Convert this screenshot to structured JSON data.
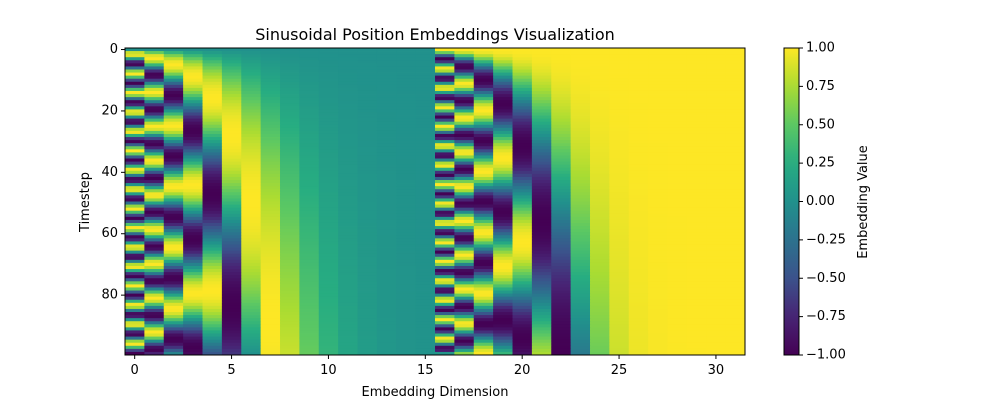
{
  "chart_data": {
    "type": "heatmap",
    "title": "Sinusoidal Position Embeddings Visualization",
    "xlabel": "Embedding Dimension",
    "ylabel": "Timestep",
    "colorbar_label": "Embedding Value",
    "colormap": "viridis",
    "rows": 100,
    "columns": 32,
    "embedding_dim": 32,
    "half_dim": 16,
    "max_period": 10000,
    "layout": "sin for dimensions 0-15, cos for dimensions 16-31",
    "xlim": [
      -0.5,
      31.5
    ],
    "ylim": [
      99.5,
      -0.5
    ],
    "xticks": [
      0,
      5,
      10,
      15,
      20,
      25,
      30
    ],
    "yticks": [
      0,
      20,
      40,
      60,
      80
    ],
    "xtick_labels": [
      "0",
      "5",
      "10",
      "15",
      "20",
      "25",
      "30"
    ],
    "ytick_labels": [
      "0",
      "20",
      "40",
      "60",
      "80"
    ],
    "vmin": -1.0,
    "vmax": 1.0,
    "colorbar_ticks": [
      1.0,
      0.75,
      0.5,
      0.25,
      0.0,
      -0.25,
      -0.5,
      -0.75,
      -1.0
    ],
    "colorbar_tick_labels": [
      "1.00",
      "0.75",
      "0.50",
      "0.25",
      "0.00",
      "−0.25",
      "−0.50",
      "−0.75",
      "−1.00"
    ],
    "grid": false
  }
}
